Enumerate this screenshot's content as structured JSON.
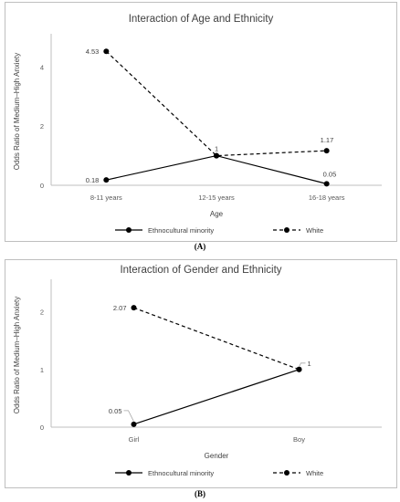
{
  "chart_data": [
    {
      "type": "line",
      "title": "Interaction of Age and Ethnicity",
      "xlabel": "Age",
      "ylabel": "Odds Ratio of Medium–High Anxiety",
      "categories": [
        "8-11 years",
        "12-15 years",
        "16-18 years"
      ],
      "yticks": [
        "0",
        "2",
        "4"
      ],
      "ylim": [
        0,
        5
      ],
      "series": [
        {
          "name": "Ethnocultural minority",
          "values": [
            0.18,
            1,
            0.05
          ],
          "labels": [
            "0.18",
            "1",
            "0.05"
          ],
          "style": "solid",
          "color": "#000000"
        },
        {
          "name": "White",
          "values": [
            4.53,
            1,
            1.17
          ],
          "labels": [
            "4.53",
            "",
            "1.17"
          ],
          "style": "dashed",
          "color": "#000000"
        }
      ],
      "legend": "bottom",
      "grid": false,
      "panel_label": "(A)"
    },
    {
      "type": "line",
      "title": "Interaction of Gender and Ethnicity",
      "xlabel": "Gender",
      "ylabel": "Odds Ratio of Medium–High Anxiety",
      "categories": [
        "Girl",
        "Boy"
      ],
      "yticks": [
        "0",
        "1",
        "2"
      ],
      "ylim": [
        0,
        2.5
      ],
      "series": [
        {
          "name": "Ethnocultural minority",
          "values": [
            0.05,
            1
          ],
          "labels": [
            "0.05",
            "1"
          ],
          "style": "solid",
          "color": "#000000"
        },
        {
          "name": "White",
          "values": [
            2.07,
            1
          ],
          "labels": [
            "2.07",
            ""
          ],
          "style": "dashed",
          "color": "#000000"
        }
      ],
      "legend": "bottom",
      "grid": false,
      "panel_label": "(B)"
    }
  ]
}
